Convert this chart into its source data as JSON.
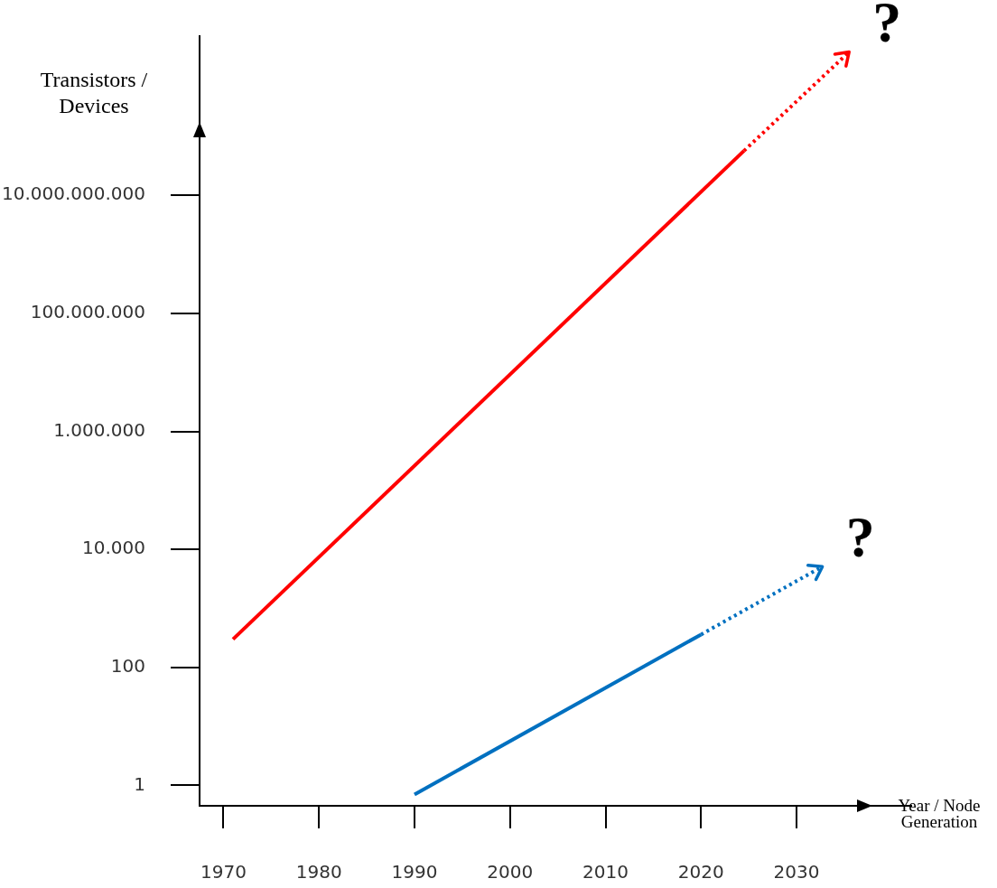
{
  "chart_data": {
    "type": "line",
    "xlabel": "Year / Node Generation",
    "ylabel": "Transistors / Devices",
    "log": "y",
    "grid": false,
    "legend": false,
    "marker": "none",
    "xlim": [
      1967.5,
      2042
    ],
    "xticks": [
      1970,
      1980,
      1990,
      2000,
      2010,
      2020,
      2030
    ],
    "ylim": [
      0.45,
      5000000000000
    ],
    "yticks": [
      {
        "value": 1,
        "label": "1"
      },
      {
        "value": 100,
        "label": "100"
      },
      {
        "value": 10000,
        "label": "10.000"
      },
      {
        "value": 1000000,
        "label": "1.000.000"
      },
      {
        "value": 100000000,
        "label": "100.000.000"
      },
      {
        "value": 10000000000,
        "label": "10.000.000.000"
      }
    ],
    "series": [
      {
        "color": "#ff0000",
        "line_style": "solid",
        "x": [
          1971,
          2024.5
        ],
        "values": [
          300,
          57000000000
        ]
      },
      {
        "color": "#ff0000",
        "line_style": "dotted",
        "x": [
          2024.5,
          2035.5
        ],
        "values": [
          57000000000,
          2700000000000
        ]
      },
      {
        "color": "#0070c0",
        "line_style": "solid",
        "x": [
          1990,
          2020
        ],
        "values": [
          0.7,
          360
        ]
      },
      {
        "color": "#0070c0",
        "line_style": "dotted",
        "x": [
          2020,
          2032.7
        ],
        "values": [
          360,
          5100
        ]
      }
    ],
    "annotations": [
      "?",
      "?"
    ]
  }
}
